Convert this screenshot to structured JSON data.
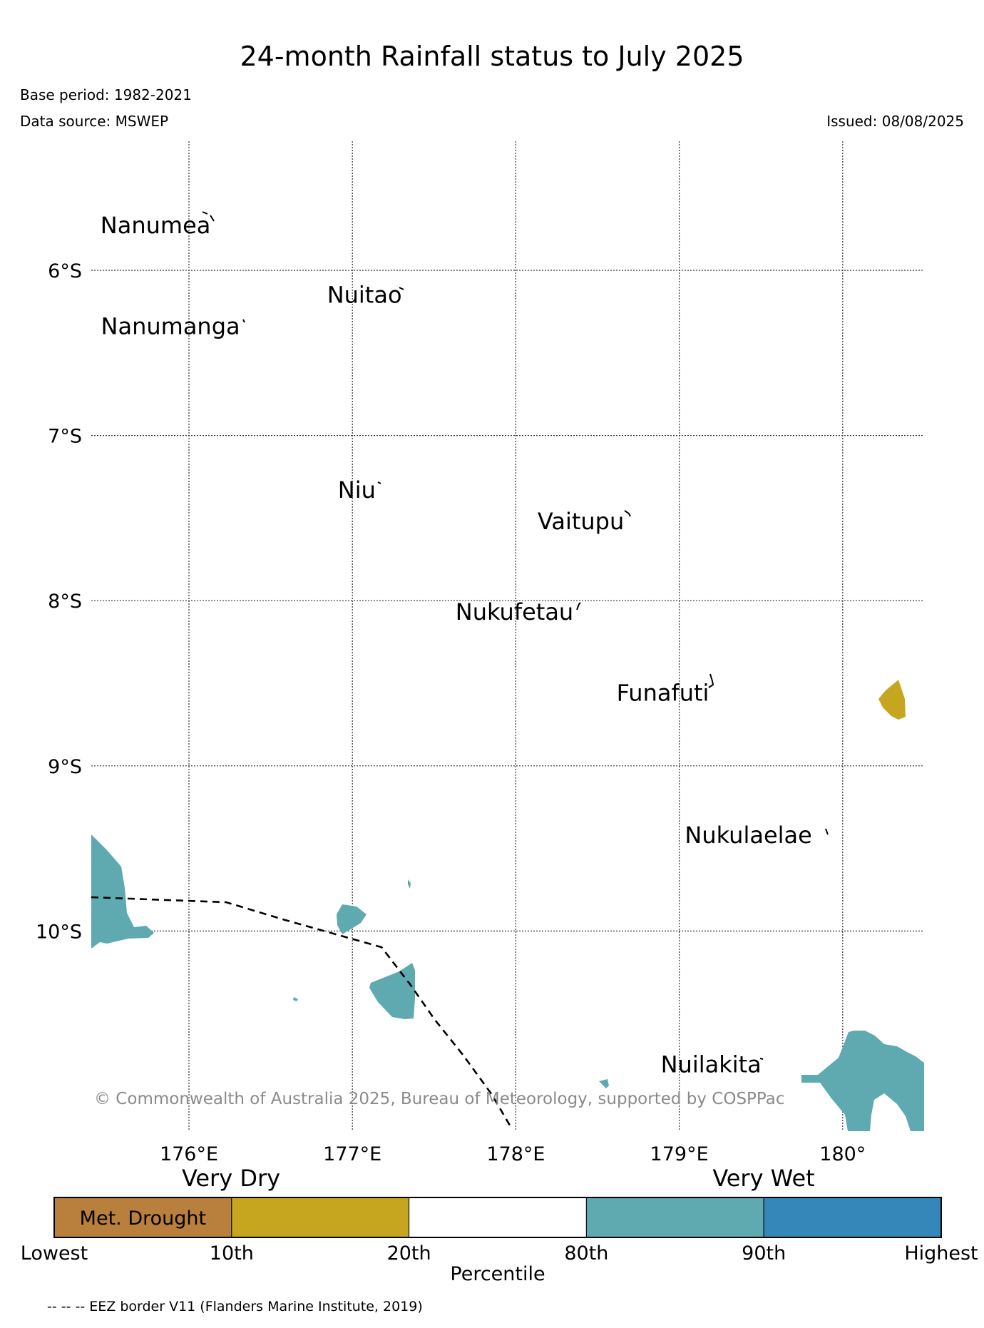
{
  "title": "24-month Rainfall status to July 2025",
  "base_period": "Base period: 1982-2021",
  "data_source": "Data source: MSWEP",
  "issued": "Issued: 08/08/2025",
  "copyright": "© Commonwealth of Australia 2025, Bureau of Meteorology, supported by COSPPac",
  "map": {
    "lon_range": [
      175.4,
      180.5
    ],
    "lat_range": [
      -5.2,
      -11.2
    ],
    "lon_ticks": [
      {
        "value": 176,
        "label": "176°E"
      },
      {
        "value": 177,
        "label": "177°E"
      },
      {
        "value": 178,
        "label": "178°E"
      },
      {
        "value": 179,
        "label": "179°E"
      },
      {
        "value": 180,
        "label": "180°"
      }
    ],
    "lat_ticks": [
      {
        "value": -6,
        "label": "6°S"
      },
      {
        "value": -7,
        "label": "7°S"
      },
      {
        "value": -8,
        "label": "8°S"
      },
      {
        "value": -9,
        "label": "9°S"
      },
      {
        "value": -10,
        "label": "10°S"
      }
    ],
    "gridlines": true,
    "islands": [
      {
        "name": "Nanumea",
        "lon": 176.15,
        "lat": -5.69
      },
      {
        "name": "Nuitao",
        "lon": 177.32,
        "lat": -6.11
      },
      {
        "name": "Nanumanga",
        "lon": 176.33,
        "lat": -6.3
      },
      {
        "name": "Niu",
        "lon": 177.16,
        "lat": -7.29
      },
      {
        "name": "Vaitupu",
        "lon": 178.68,
        "lat": -7.48
      },
      {
        "name": "Nukufetau",
        "lon": 178.37,
        "lat": -8.03
      },
      {
        "name": "Funafuti",
        "lon": 179.2,
        "lat": -8.52
      },
      {
        "name": "Nukulaelae",
        "lon": 179.83,
        "lat": -9.38
      },
      {
        "name": "Nuilakita",
        "lon": 179.52,
        "lat": -10.77
      }
    ],
    "eez_border_label": "-- -- -- EEZ border V11 (Flanders Marine Institute, 2019)"
  },
  "legend": {
    "left_header": "Very Dry",
    "right_header": "Very Wet",
    "axis_title": "Percentile",
    "categories": [
      {
        "label": "Met. Drought",
        "color": "#b97f3d"
      },
      {
        "label": "",
        "color": "#c7a61f"
      },
      {
        "label": "",
        "color": "#ffffff"
      },
      {
        "label": "",
        "color": "#5eaab0"
      },
      {
        "label": "",
        "color": "#3687b9"
      }
    ],
    "ticks": [
      "Lowest",
      "10th",
      "20th",
      "80th",
      "90th",
      "Highest"
    ]
  },
  "colors": {
    "dry": "#c7a61f",
    "wet": "#5eaab0"
  }
}
